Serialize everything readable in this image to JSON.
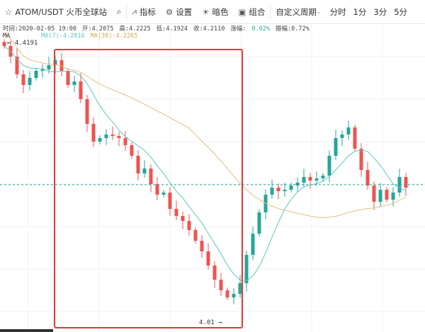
{
  "toolbar": {
    "symbol": "ATOM/USDT",
    "exchange": "火币全球站",
    "indicators": "指标",
    "settings": "设置",
    "dark": "暗色",
    "combo": "组合",
    "custom_period": "自定义周期",
    "periods": [
      "分时",
      "1分",
      "3分",
      "5分"
    ]
  },
  "info": {
    "time": "时间:2020-02-05 19:00",
    "open": "开:4.2075",
    "high": "高:4.2225",
    "low": "低:4.1924",
    "close": "收:4.2110",
    "change_label": "涨幅:",
    "change": "0.02%",
    "amplitude": "振幅:0.72%"
  },
  "ma": {
    "label": "MA",
    "ma7": "MA(7):4.2016",
    "ma30": "MA(30):4.2265"
  },
  "colors": {
    "up": "#26a69a",
    "down": "#ef5350",
    "ma7": "#5cc8c0",
    "ma30": "#e0c080",
    "highlight": "#e53935",
    "last_price_line": "#26a69a"
  },
  "chart_data": {
    "type": "candlestick",
    "high_label": "4.4191",
    "low_label": "4.01",
    "last_price": 4.211,
    "closes": [
      4.4139,
      4.3984,
      4.3725,
      4.3569,
      4.3673,
      4.3777,
      4.3797,
      4.3859,
      4.3932,
      4.3777,
      4.3569,
      4.3621,
      4.3362,
      4.3,
      4.2741,
      4.2792,
      4.2844,
      4.2823,
      4.2792,
      4.2689,
      4.2533,
      4.2274,
      4.2347,
      4.2119,
      4.1964,
      4.1995,
      4.1756,
      4.1653,
      4.158,
      4.1446,
      4.129,
      4.1135,
      4.0928,
      4.072,
      4.0565,
      4.0461,
      4.0513,
      4.0669,
      4.1083,
      4.1394,
      4.1705,
      4.1964,
      4.2067,
      4.2015,
      4.2036,
      4.2098,
      4.214,
      4.2223,
      4.2171,
      4.2202,
      4.2243,
      4.2533,
      4.2792,
      4.2844,
      4.2948,
      4.2637,
      4.2326,
      4.2098,
      4.186,
      4.2036,
      4.1891,
      4.1995,
      4.2223,
      4.2067
    ]
  }
}
